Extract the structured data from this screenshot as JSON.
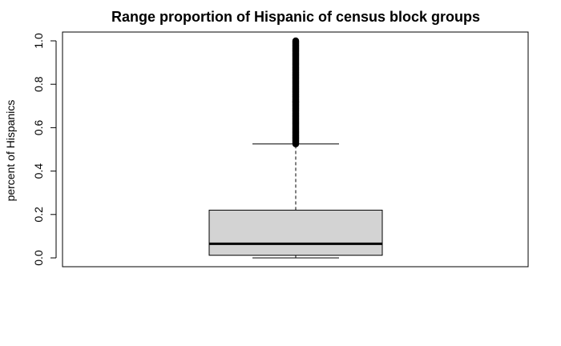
{
  "chart_data": {
    "type": "boxplot",
    "title": "Range proportion of Hispanic of census block groups",
    "ylabel": "percent of Hispanics",
    "xlabel": "",
    "ylim": [
      0.0,
      1.0
    ],
    "yticks": [
      "0.0",
      "0.2",
      "0.4",
      "0.6",
      "0.8",
      "1.0"
    ],
    "grid": false,
    "box": {
      "min": 0.0,
      "q1": 0.012,
      "median": 0.065,
      "q3": 0.22,
      "upper_whisker": 0.525,
      "outliers_range": [
        0.525,
        1.0
      ]
    },
    "colors": {
      "box_fill": "#d3d3d3",
      "stroke": "#000000"
    }
  }
}
